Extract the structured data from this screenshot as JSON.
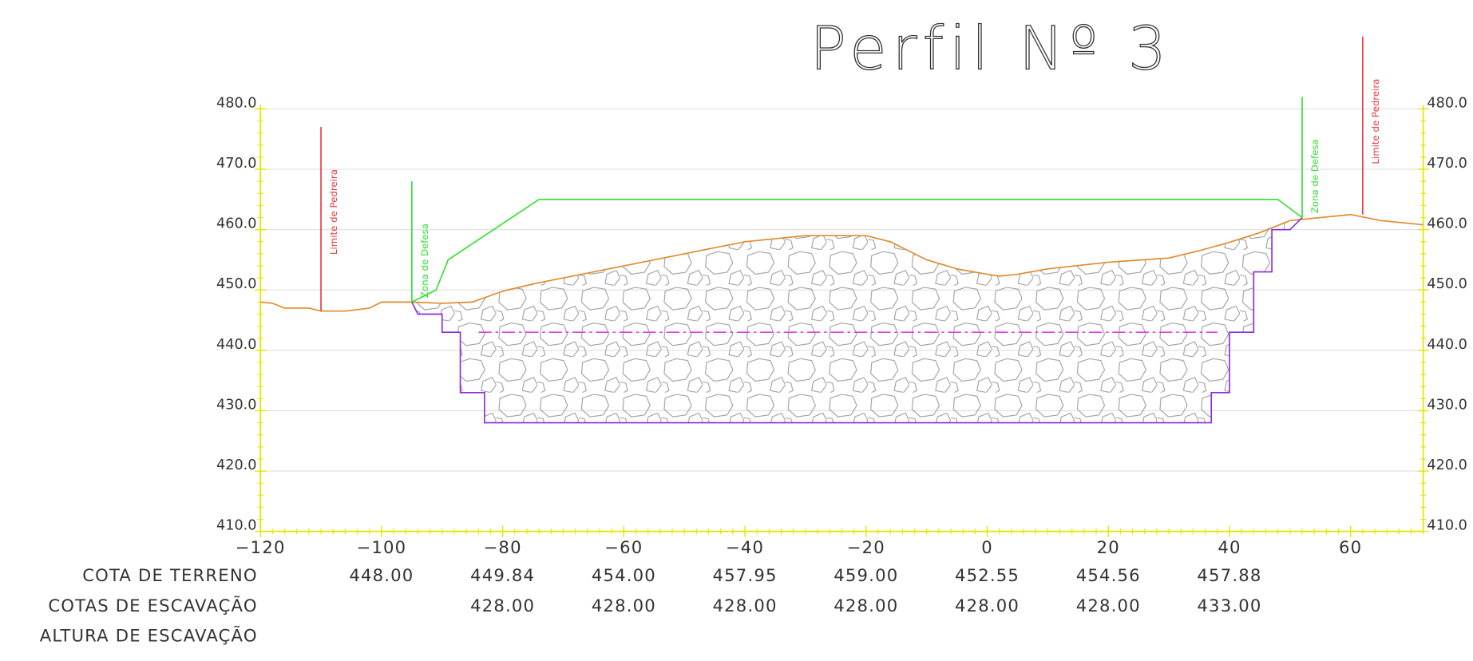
{
  "chart_data": {
    "type": "line",
    "title": "Perfil Nº 3",
    "xlim": [
      -120,
      72
    ],
    "ylim": [
      410,
      480
    ],
    "xticks": [
      {
        "value": -120,
        "label": "−120"
      },
      {
        "value": -100,
        "label": "−100"
      },
      {
        "value": -80,
        "label": "−80"
      },
      {
        "value": -60,
        "label": "−60"
      },
      {
        "value": -40,
        "label": "−40"
      },
      {
        "value": -20,
        "label": "−20"
      },
      0,
      20,
      40,
      60
    ],
    "yticks": [
      {
        "value": 410,
        "label": "410.0"
      },
      {
        "value": 420,
        "label": "420.0"
      },
      {
        "value": 430,
        "label": "430.0"
      },
      {
        "value": 440,
        "label": "440.0"
      },
      {
        "value": 450,
        "label": "450.0"
      },
      {
        "value": 460,
        "label": "460.0"
      },
      {
        "value": 470,
        "label": "470.0"
      },
      {
        "value": 480,
        "label": "480.0"
      }
    ],
    "grid": true,
    "series": [
      {
        "color": "#e08a2c",
        "x": [
          -120,
          -118,
          -116,
          -112,
          -110,
          -106,
          -102,
          -100,
          -95,
          -90,
          -85,
          -80,
          -75,
          -70,
          -60,
          -50,
          -40,
          -30,
          -20,
          -16,
          -10,
          -5,
          0,
          2,
          5,
          10,
          20,
          30,
          35,
          40,
          45,
          50,
          55,
          60,
          65,
          70,
          72
        ],
        "values": [
          448,
          447.8,
          447,
          447,
          446.5,
          446.5,
          447,
          448,
          448,
          447.8,
          448,
          449.8,
          451,
          452,
          454,
          456,
          458,
          459,
          459,
          458,
          455,
          453.5,
          452.6,
          452.3,
          452.6,
          453.5,
          454.6,
          455.3,
          456.5,
          457.9,
          459.5,
          461.5,
          462,
          462.5,
          461.5,
          461,
          460.8
        ]
      },
      {
        "color": "#8a2be2",
        "x": [
          -95,
          -94,
          -90,
          -90,
          -87,
          -87,
          -83,
          -83,
          37,
          37,
          40,
          40,
          44,
          44,
          47,
          47,
          50,
          52
        ],
        "values": [
          448,
          446,
          446,
          443,
          443,
          433,
          433,
          428,
          428,
          433,
          433,
          443,
          443,
          453,
          453,
          460,
          460,
          462
        ]
      },
      {
        "color": "#e040e0",
        "dash": true,
        "x": [
          -84,
          38
        ],
        "values": [
          443,
          443
        ]
      },
      {
        "color": "#33e033",
        "label": "Zona de Defesa",
        "x": [
          -95,
          -95
        ],
        "values": [
          468,
          448
        ]
      },
      {
        "color": "#33e033",
        "label": "Zona de Defesa",
        "x": [
          -95,
          -91,
          -89,
          -74,
          48,
          52,
          52
        ],
        "values": [
          448,
          450,
          455,
          465,
          465,
          462,
          482
        ]
      },
      {
        "color": "#e8383d",
        "label": "Limite de Pedreira",
        "x": [
          -110,
          -110
        ],
        "values": [
          446.5,
          477
        ]
      },
      {
        "color": "#e8383d",
        "label": "Limite de Pedreira",
        "x": [
          62,
          62
        ],
        "values": [
          462.5,
          492
        ]
      }
    ],
    "table": [
      {
        "label": "COTA DE TERRENO",
        "values": [
          null,
          "448.00",
          "449.84",
          "454.00",
          "457.95",
          "459.00",
          "452.55",
          "454.56",
          "457.88",
          null
        ]
      },
      {
        "label": "COTAS DE ESCAVAÇÃO",
        "values": [
          null,
          null,
          "428.00",
          "428.00",
          "428.00",
          "428.00",
          "428.00",
          "428.00",
          "433.00",
          null
        ]
      },
      {
        "label": "ALTURA DE ESCAVAÇÃO",
        "values": [
          null,
          null,
          null,
          null,
          null,
          null,
          null,
          null,
          null,
          null
        ]
      }
    ]
  }
}
